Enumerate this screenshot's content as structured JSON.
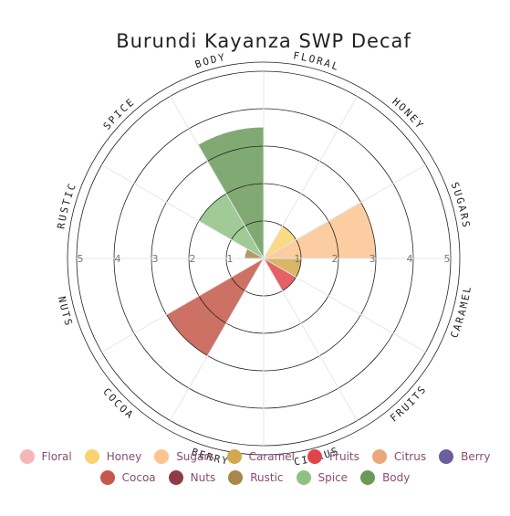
{
  "chart_data": {
    "type": "polar-area",
    "title": "Burundi Kayanza SWP Decaf",
    "rlim": [
      0,
      5
    ],
    "r_ticks": [
      "1",
      "2",
      "3",
      "4",
      "5"
    ],
    "categories": [
      "Floral",
      "Honey",
      "Sugars",
      "Caramel",
      "Fruits",
      "Citrus",
      "Berry",
      "Cocoa",
      "Nuts",
      "Rustic",
      "Spice",
      "Body"
    ],
    "category_labels": [
      "FLORAL",
      "HONEY",
      "SUGARS",
      "CARAMEL",
      "FRUITS",
      "CITRUS",
      "BERRY",
      "COCOA",
      "NUTS",
      "RUSTIC",
      "SPICE",
      "BODY"
    ],
    "values": [
      0,
      1,
      3,
      1,
      1,
      0,
      0,
      3,
      0,
      0.5,
      2,
      3.5
    ],
    "colors": [
      "#f4b6b6",
      "#f9d36f",
      "#fcc48f",
      "#d4a84e",
      "#e0454b",
      "#eba77a",
      "#6b5e9e",
      "#c4584a",
      "#8e3b46",
      "#a8874a",
      "#8fc184",
      "#6a9a5a"
    ],
    "legend_position": "bottom"
  }
}
